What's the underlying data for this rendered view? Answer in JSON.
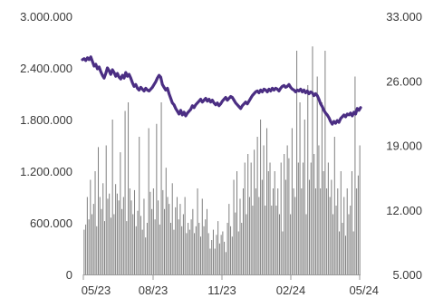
{
  "chart_data": {
    "type": "bar+line",
    "title": "",
    "x_ticks": [
      "05/23",
      "08/23",
      "11/23",
      "02/24",
      "05/24"
    ],
    "y_left_ticks": [
      "3.000.000",
      "2.400.000",
      "1.800.000",
      "1.200.000",
      "600.000",
      "0"
    ],
    "y_right_ticks": [
      "33.000",
      "26.000",
      "19.000",
      "12.000",
      "5.000"
    ],
    "y_left_range": [
      0,
      3000000
    ],
    "y_right_range": [
      5000,
      33000
    ],
    "grid": false,
    "legend": "none",
    "colors": {
      "bars": "#7f7f7f",
      "line": "#4b2e83",
      "axis": "#9a9a9a",
      "text": "#3a3a3a"
    },
    "series": [
      {
        "type": "bar",
        "axis": "left",
        "values": [
          520000,
          580000,
          900000,
          640000,
          1100000,
          700000,
          820000,
          1200000,
          560000,
          1480000,
          900000,
          760000,
          1060000,
          620000,
          1500000,
          880000,
          940000,
          660000,
          1800000,
          700000,
          1050000,
          940000,
          860000,
          1420000,
          760000,
          900000,
          1900000,
          620000,
          2000000,
          1000000,
          860000,
          700000,
          980000,
          560000,
          740000,
          1600000,
          680000,
          520000,
          880000,
          430000,
          600000,
          1700000,
          960000,
          760000,
          1000000,
          640000,
          1750000,
          860000,
          580000,
          2000000,
          980000,
          760000,
          1240000,
          900000,
          820000,
          600000,
          1060000,
          520000,
          780000,
          900000,
          640000,
          820000,
          560000,
          700000,
          900000,
          480000,
          600000,
          520000,
          640000,
          760000,
          480000,
          560000,
          1000000,
          600000,
          440000,
          880000,
          560000,
          640000,
          760000,
          480000,
          300000,
          400000,
          520000,
          300000,
          460000,
          620000,
          360000,
          460000,
          500000,
          380000,
          260000,
          600000,
          820000,
          560000,
          440000,
          1100000,
          720000,
          1200000,
          500000,
          880000,
          600000,
          1000000,
          1300000,
          700000,
          1400000,
          900000,
          1300000,
          800000,
          1450000,
          1000000,
          1600000,
          900000,
          1800000,
          1100000,
          1500000,
          800000,
          1700000,
          1200000,
          1300000,
          800000,
          1000000,
          1200000,
          800000,
          1000000,
          700000,
          1300000,
          500000,
          1400000,
          1100000,
          1500000,
          1350000,
          700000,
          1700000,
          1000000,
          900000,
          2600000,
          1300000,
          2000000,
          1000000,
          1300000,
          1800000,
          700000,
          2200000,
          1100000,
          1300000,
          2650000,
          1400000,
          1000000,
          2300000,
          1500000,
          1000000,
          2000000,
          1200000,
          2600000,
          1000000,
          1300000,
          900000,
          1100000,
          700000,
          1600000,
          800000,
          1000000,
          500000,
          1200000,
          600000,
          900000,
          450000,
          1000000,
          700000,
          800000,
          1200000,
          500000,
          2300000,
          1000000,
          1150000,
          1500000
        ]
      },
      {
        "type": "line",
        "axis": "right",
        "x_start": "05/23",
        "x_end": "05/24",
        "values": [
          28.3,
          28.4,
          28.2,
          28.5,
          28.3,
          28.6,
          28.1,
          27.6,
          27.8,
          27.3,
          27.5,
          27.0,
          26.6,
          26.3,
          26.8,
          27.4,
          27.1,
          26.7,
          27.2,
          26.9,
          26.5,
          26.8,
          26.4,
          26.2,
          26.6,
          26.3,
          26.9,
          26.5,
          26.7,
          26.3,
          25.8,
          25.4,
          25.6,
          25.2,
          25.0,
          25.3,
          25.1,
          24.9,
          25.2,
          25.0,
          24.9,
          25.1,
          25.3,
          25.6,
          25.9,
          26.3,
          26.6,
          26.4,
          25.6,
          25.3,
          25.0,
          25.2,
          24.6,
          24.1,
          23.6,
          23.4,
          23.0,
          22.7,
          22.4,
          22.8,
          22.3,
          22.6,
          22.2,
          22.5,
          22.7,
          22.9,
          23.3,
          23.1,
          23.4,
          23.6,
          23.8,
          24.0,
          23.7,
          23.9,
          24.1,
          23.8,
          24.0,
          23.7,
          23.9,
          23.6,
          23.4,
          23.6,
          23.3,
          23.5,
          23.8,
          24.0,
          24.2,
          23.9,
          24.1,
          24.3,
          24.2,
          23.9,
          23.6,
          23.4,
          23.2,
          23.0,
          23.3,
          23.5,
          23.7,
          23.5,
          23.8,
          24.1,
          24.4,
          24.6,
          24.8,
          24.9,
          24.7,
          25.0,
          24.8,
          25.1,
          25.0,
          24.8,
          25.1,
          24.9,
          25.2,
          25.0,
          25.2,
          25.1,
          24.9,
          25.2,
          25.4,
          25.5,
          25.3,
          25.4,
          25.6,
          25.3,
          25.1,
          25.0,
          24.8,
          25.0,
          24.9,
          25.1,
          24.8,
          25.0,
          24.7,
          24.9,
          24.6,
          24.8,
          24.7,
          24.4,
          24.6,
          24.4,
          24.0,
          23.5,
          23.2,
          22.8,
          22.5,
          22.3,
          22.0,
          21.6,
          21.3,
          21.6,
          21.4,
          21.7,
          21.5,
          21.9,
          22.1,
          22.3,
          22.1,
          22.4,
          22.3,
          22.5,
          22.2,
          22.6,
          22.4,
          23.0,
          22.8,
          23.1
        ]
      }
    ]
  }
}
